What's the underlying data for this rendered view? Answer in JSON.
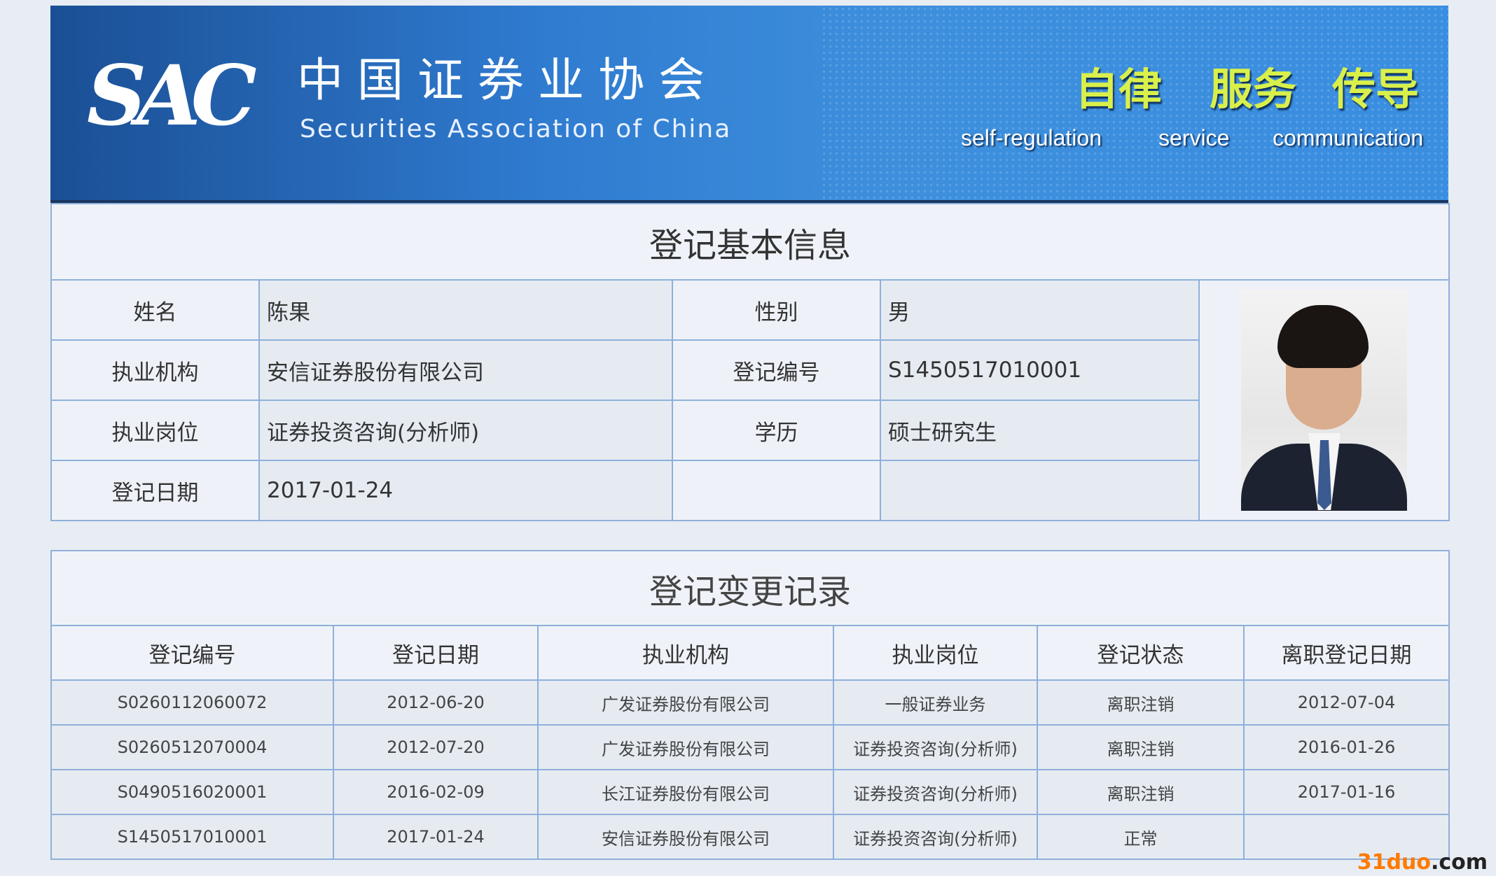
{
  "banner": {
    "logo": "SAC",
    "name_cn": "中国证券业协会",
    "name_en": "Securities Association of China",
    "slogans": [
      {
        "cn": "自律",
        "en": "self-regulation"
      },
      {
        "cn": "服务",
        "en": "service"
      },
      {
        "cn": "传导",
        "en": "communication"
      }
    ]
  },
  "basic_info": {
    "title": "登记基本信息",
    "rows": [
      [
        {
          "label": "姓名",
          "value": "陈果"
        },
        {
          "label": "性别",
          "value": "男"
        }
      ],
      [
        {
          "label": "执业机构",
          "value": "安信证券股份有限公司"
        },
        {
          "label": "登记编号",
          "value": "S1450517010001"
        }
      ],
      [
        {
          "label": "执业岗位",
          "value": "证券投资咨询(分析师)"
        },
        {
          "label": "学历",
          "value": "硕士研究生"
        }
      ],
      [
        {
          "label": "登记日期",
          "value": "2017-01-24"
        },
        {
          "label": "",
          "value": ""
        }
      ]
    ]
  },
  "change_records": {
    "title": "登记变更记录",
    "columns": [
      "登记编号",
      "登记日期",
      "执业机构",
      "执业岗位",
      "登记状态",
      "离职登记日期"
    ],
    "rows": [
      [
        "S0260112060072",
        "2012-06-20",
        "广发证券股份有限公司",
        "一般证券业务",
        "离职注销",
        "2012-07-04"
      ],
      [
        "S0260512070004",
        "2012-07-20",
        "广发证券股份有限公司",
        "证券投资咨询(分析师)",
        "离职注销",
        "2016-01-26"
      ],
      [
        "S0490516020001",
        "2016-02-09",
        "长江证券股份有限公司",
        "证券投资咨询(分析师)",
        "离职注销",
        "2017-01-16"
      ],
      [
        "S1450517010001",
        "2017-01-24",
        "安信证券股份有限公司",
        "证券投资咨询(分析师)",
        "正常",
        ""
      ]
    ]
  },
  "watermark": {
    "part1": "31duo",
    "part2": ".com"
  },
  "colors": {
    "border": "#8eb0da",
    "banner": "#2f7bd0",
    "slogan": "#d9f04a"
  }
}
